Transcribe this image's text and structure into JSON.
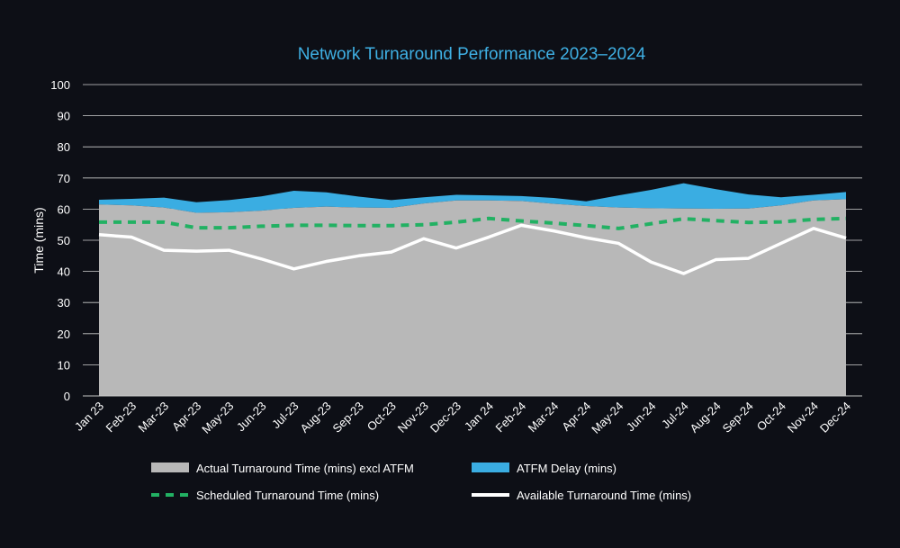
{
  "chart_data": {
    "type": "area",
    "title": "Network Turnaround Performance 2023–2024",
    "xlabel": "",
    "ylabel": "Time (mins)",
    "ylim": [
      0,
      100
    ],
    "yticks": [
      0,
      10,
      20,
      30,
      40,
      50,
      60,
      70,
      80,
      90,
      100
    ],
    "grid": true,
    "legend_position": "bottom",
    "categories": [
      "Jan 23",
      "Feb-23",
      "Mar-23",
      "Apr-23",
      "May-23",
      "Jun-23",
      "Jul-23",
      "Aug-23",
      "Sep-23",
      "Oct-23",
      "Nov-23",
      "Dec-23",
      "Jan 24",
      "Feb-24",
      "Mar-24",
      "Apr-24",
      "May-24",
      "Jun-24",
      "Jul-24",
      "Aug-24",
      "Sep-24",
      "Oct-24",
      "Nov-24",
      "Dec-24"
    ],
    "series": [
      {
        "name": "Actual Turnaround Time (mins) excl ATFM",
        "kind": "area",
        "color": "#b8b8b8",
        "values": [
          61.5,
          61.2,
          60.5,
          58.8,
          59.0,
          59.5,
          60.4,
          60.8,
          60.5,
          60.4,
          61.8,
          62.8,
          62.8,
          62.6,
          61.7,
          61.0,
          60.5,
          60.3,
          60.2,
          60.1,
          60.2,
          61.2,
          62.8,
          63.2
        ]
      },
      {
        "name": "ATFM Delay (mins)",
        "kind": "stacked-area",
        "color": "#3aade2",
        "values": [
          1.5,
          2.1,
          3.2,
          3.4,
          3.9,
          4.6,
          5.5,
          4.6,
          3.5,
          2.5,
          2.0,
          1.8,
          1.6,
          1.6,
          1.9,
          1.5,
          3.9,
          5.9,
          8.1,
          6.3,
          4.5,
          2.6,
          1.8,
          2.3
        ]
      },
      {
        "name": "Scheduled Turnaround Time (mins)",
        "kind": "line",
        "style": "dashed",
        "color": "#22b163",
        "values": [
          55.8,
          55.8,
          55.8,
          54.0,
          54.0,
          54.5,
          54.8,
          54.8,
          54.7,
          54.7,
          55.0,
          55.8,
          57.0,
          56.2,
          55.5,
          54.7,
          53.8,
          55.3,
          56.9,
          56.3,
          55.7,
          55.9,
          56.7,
          57.0
        ]
      },
      {
        "name": "Available Turnaround Time (mins)",
        "kind": "line",
        "style": "solid",
        "color": "#ffffff",
        "values": [
          51.8,
          51.0,
          46.8,
          46.5,
          46.8,
          44.0,
          40.8,
          43.2,
          45.0,
          46.2,
          50.5,
          47.5,
          51.0,
          54.8,
          53.0,
          50.8,
          49.0,
          43.0,
          39.3,
          43.8,
          44.2,
          49.0,
          53.8,
          50.7
        ]
      }
    ]
  }
}
